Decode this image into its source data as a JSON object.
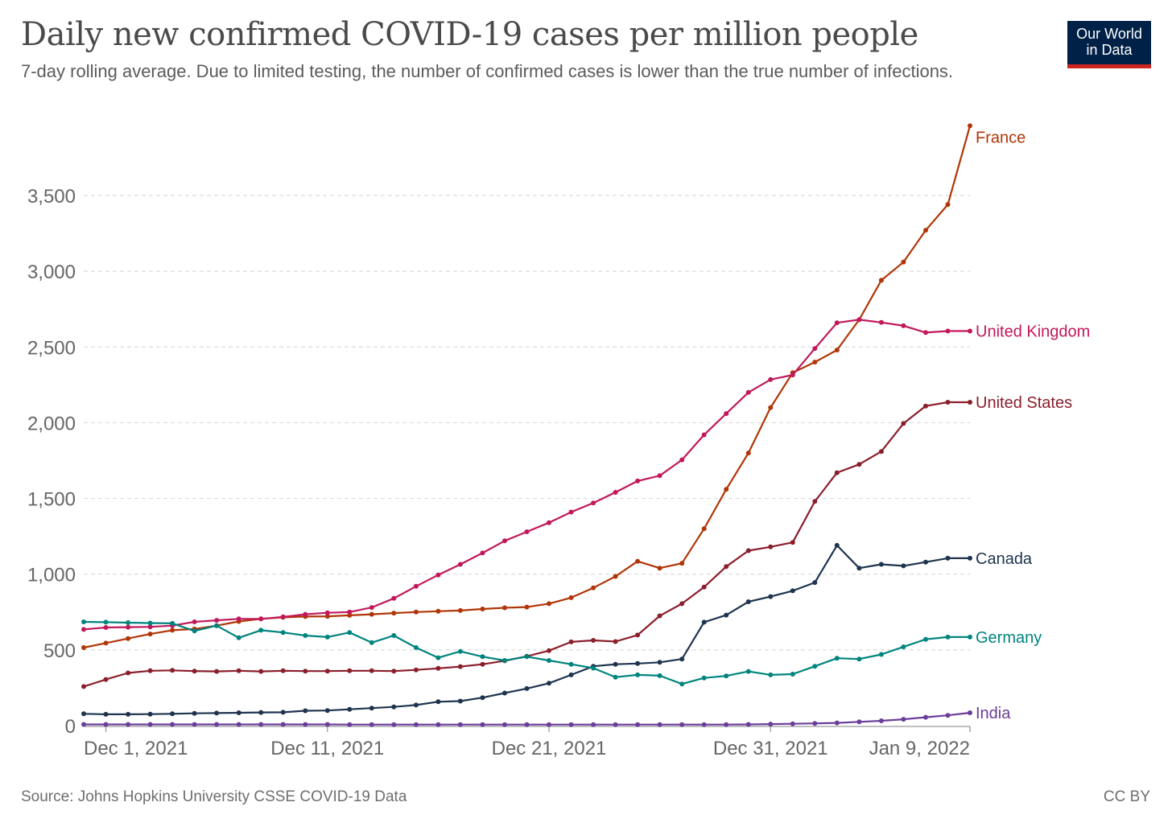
{
  "title": "Daily new confirmed COVID-19 cases per million people",
  "subtitle": "7-day rolling average. Due to limited testing, the number of confirmed cases is lower than the true number of infections.",
  "logo": {
    "line1": "Our World",
    "line2": "in Data"
  },
  "source": "Source: Johns Hopkins University CSSE COVID-19 Data",
  "license": "CC BY",
  "colors": {
    "accent": "#ce261e",
    "brand": "#002147"
  },
  "chart_data": {
    "type": "line",
    "title": "Daily new confirmed COVID-19 cases per million people",
    "xlabel": "",
    "ylabel": "",
    "ylim": [
      0,
      3950
    ],
    "grid": "horizontal dashed",
    "legend": "right-end labels",
    "y_ticks": [
      0,
      500,
      1000,
      1500,
      2000,
      2500,
      3000,
      3500
    ],
    "y_tick_labels": [
      "0",
      "500",
      "1,000",
      "1,500",
      "2,000",
      "2,500",
      "3,000",
      "3,500"
    ],
    "x_ticks": [
      {
        "label": "Dec 1, 2021",
        "date": "2021-12-01"
      },
      {
        "label": "Dec 11, 2021",
        "date": "2021-12-11"
      },
      {
        "label": "Dec 21, 2021",
        "date": "2021-12-21"
      },
      {
        "label": "Dec 31, 2021",
        "date": "2021-12-31"
      },
      {
        "label": "Jan 9, 2022",
        "date": "2022-01-09"
      }
    ],
    "x": [
      "2021-11-30",
      "2021-12-01",
      "2021-12-02",
      "2021-12-03",
      "2021-12-04",
      "2021-12-05",
      "2021-12-06",
      "2021-12-07",
      "2021-12-08",
      "2021-12-09",
      "2021-12-10",
      "2021-12-11",
      "2021-12-12",
      "2021-12-13",
      "2021-12-14",
      "2021-12-15",
      "2021-12-16",
      "2021-12-17",
      "2021-12-18",
      "2021-12-19",
      "2021-12-20",
      "2021-12-21",
      "2021-12-22",
      "2021-12-23",
      "2021-12-24",
      "2021-12-25",
      "2021-12-26",
      "2021-12-27",
      "2021-12-28",
      "2021-12-29",
      "2021-12-30",
      "2021-12-31",
      "2022-01-01",
      "2022-01-02",
      "2022-01-03",
      "2022-01-04",
      "2022-01-05",
      "2022-01-06",
      "2022-01-07",
      "2022-01-08",
      "2022-01-09"
    ],
    "series": [
      {
        "name": "France",
        "color": "#b13507",
        "values": [
          515,
          545,
          575,
          605,
          630,
          638,
          660,
          688,
          705,
          715,
          720,
          722,
          728,
          735,
          743,
          750,
          755,
          760,
          770,
          778,
          783,
          805,
          845,
          910,
          985,
          1085,
          1040,
          1072,
          1300,
          1560,
          1800,
          2100,
          2330,
          2400,
          2480,
          2680,
          2940,
          3060,
          3270,
          3440,
          3960
        ]
      },
      {
        "name": "United Kingdom",
        "color": "#c2185b",
        "values": [
          635,
          648,
          650,
          652,
          660,
          685,
          695,
          705,
          705,
          718,
          735,
          745,
          750,
          780,
          840,
          920,
          995,
          1065,
          1140,
          1220,
          1280,
          1340,
          1410,
          1470,
          1540,
          1615,
          1650,
          1755,
          1920,
          2060,
          2200,
          2285,
          2315,
          2490,
          2660,
          2680,
          2662,
          2640,
          2595,
          2605,
          2605
        ]
      },
      {
        "name": "United States",
        "color": "#8b1e2b",
        "values": [
          258,
          305,
          348,
          362,
          365,
          360,
          358,
          362,
          358,
          362,
          360,
          360,
          362,
          362,
          360,
          368,
          378,
          390,
          405,
          428,
          458,
          495,
          553,
          563,
          555,
          598,
          725,
          805,
          915,
          1050,
          1155,
          1180,
          1210,
          1480,
          1670,
          1725,
          1810,
          1995,
          2110,
          2135,
          2135
        ]
      },
      {
        "name": "Canada",
        "color": "#1e344e",
        "values": [
          78,
          75,
          75,
          76,
          78,
          81,
          83,
          85,
          87,
          88,
          98,
          100,
          108,
          116,
          124,
          136,
          158,
          162,
          185,
          215,
          245,
          280,
          335,
          392,
          405,
          410,
          418,
          440,
          683,
          730,
          818,
          852,
          890,
          945,
          1190,
          1040,
          1065,
          1055,
          1080,
          1105,
          1105
        ]
      },
      {
        "name": "Germany",
        "color": "#00847e",
        "values": [
          685,
          683,
          680,
          677,
          675,
          625,
          660,
          580,
          630,
          615,
          595,
          585,
          615,
          548,
          595,
          515,
          448,
          490,
          455,
          430,
          455,
          430,
          405,
          380,
          320,
          335,
          330,
          275,
          315,
          328,
          358,
          335,
          340,
          392,
          445,
          440,
          470,
          520,
          570,
          585,
          585
        ]
      },
      {
        "name": "India",
        "color": "#6b3d9a",
        "values": [
          8,
          8,
          8,
          8,
          8,
          8,
          8,
          8,
          8,
          8,
          8,
          8,
          7,
          7,
          7,
          7,
          7,
          7,
          7,
          7,
          7,
          7,
          7,
          7,
          7,
          7,
          7,
          7,
          7,
          7,
          8,
          10,
          12,
          15,
          18,
          25,
          32,
          42,
          55,
          68,
          85
        ]
      }
    ]
  }
}
